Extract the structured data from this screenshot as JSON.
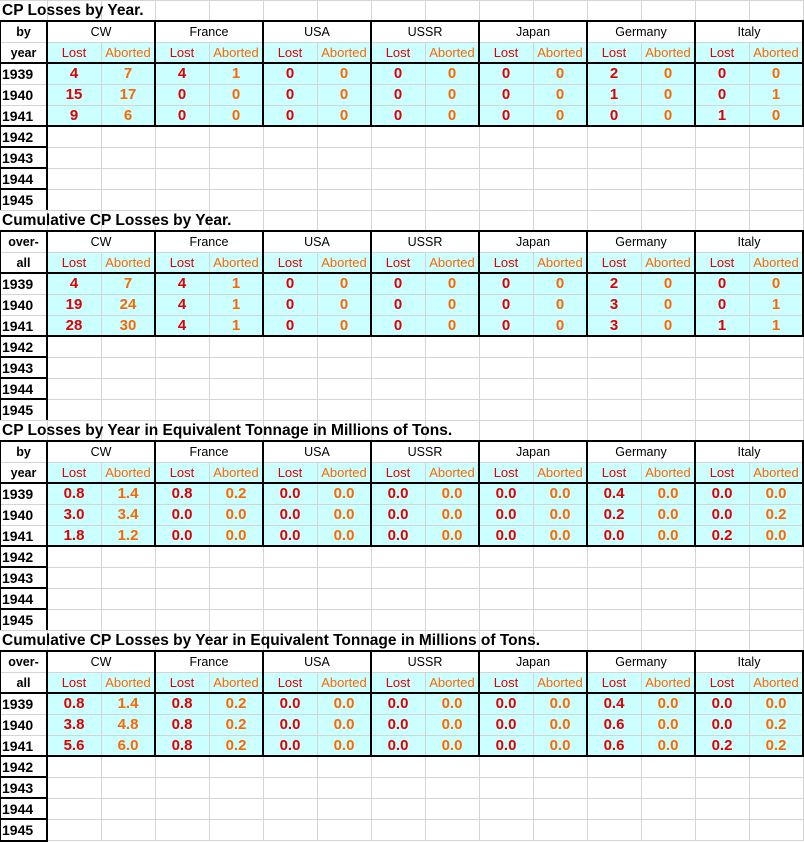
{
  "nations": [
    "CW",
    "France",
    "USA",
    "USSR",
    "Japan",
    "Germany",
    "Italy"
  ],
  "sub_headers": {
    "lost": "Lost",
    "aborted": "Aborted"
  },
  "colors": {
    "cell_fill": "#ccffff",
    "lost": "#e00000",
    "aborted": "#ff6600",
    "grid": "#d4d4d4",
    "border": "#000000"
  },
  "years": [
    "1939",
    "1940",
    "1941",
    "1942",
    "1943",
    "1944",
    "1945"
  ],
  "tables": [
    {
      "title": "CP Losses by Year.",
      "corner": [
        "by",
        "year"
      ],
      "rows": [
        [
          "4",
          "7",
          "4",
          "1",
          "0",
          "0",
          "0",
          "0",
          "0",
          "0",
          "2",
          "0",
          "0",
          "0"
        ],
        [
          "15",
          "17",
          "0",
          "0",
          "0",
          "0",
          "0",
          "0",
          "0",
          "0",
          "1",
          "0",
          "0",
          "1"
        ],
        [
          "9",
          "6",
          "0",
          "0",
          "0",
          "0",
          "0",
          "0",
          "0",
          "0",
          "0",
          "0",
          "1",
          "0"
        ]
      ]
    },
    {
      "title": "Cumulative CP Losses by Year.",
      "corner": [
        "over-",
        "all"
      ],
      "rows": [
        [
          "4",
          "7",
          "4",
          "1",
          "0",
          "0",
          "0",
          "0",
          "0",
          "0",
          "2",
          "0",
          "0",
          "0"
        ],
        [
          "19",
          "24",
          "4",
          "1",
          "0",
          "0",
          "0",
          "0",
          "0",
          "0",
          "3",
          "0",
          "0",
          "1"
        ],
        [
          "28",
          "30",
          "4",
          "1",
          "0",
          "0",
          "0",
          "0",
          "0",
          "0",
          "3",
          "0",
          "1",
          "1"
        ]
      ]
    },
    {
      "title": "CP Losses by Year in Equivalent Tonnage in Millions of Tons.",
      "corner": [
        "by",
        "year"
      ],
      "rows": [
        [
          "0.8",
          "1.4",
          "0.8",
          "0.2",
          "0.0",
          "0.0",
          "0.0",
          "0.0",
          "0.0",
          "0.0",
          "0.4",
          "0.0",
          "0.0",
          "0.0"
        ],
        [
          "3.0",
          "3.4",
          "0.0",
          "0.0",
          "0.0",
          "0.0",
          "0.0",
          "0.0",
          "0.0",
          "0.0",
          "0.2",
          "0.0",
          "0.0",
          "0.2"
        ],
        [
          "1.8",
          "1.2",
          "0.0",
          "0.0",
          "0.0",
          "0.0",
          "0.0",
          "0.0",
          "0.0",
          "0.0",
          "0.0",
          "0.0",
          "0.2",
          "0.0"
        ]
      ]
    },
    {
      "title": "Cumulative CP Losses by Year in Equivalent Tonnage in Millions of Tons.",
      "corner": [
        "over-",
        "all"
      ],
      "rows": [
        [
          "0.8",
          "1.4",
          "0.8",
          "0.2",
          "0.0",
          "0.0",
          "0.0",
          "0.0",
          "0.0",
          "0.0",
          "0.4",
          "0.0",
          "0.0",
          "0.0"
        ],
        [
          "3.8",
          "4.8",
          "0.8",
          "0.2",
          "0.0",
          "0.0",
          "0.0",
          "0.0",
          "0.0",
          "0.0",
          "0.6",
          "0.0",
          "0.0",
          "0.2"
        ],
        [
          "5.6",
          "6.0",
          "0.8",
          "0.2",
          "0.0",
          "0.0",
          "0.0",
          "0.0",
          "0.0",
          "0.0",
          "0.6",
          "0.0",
          "0.2",
          "0.2"
        ]
      ]
    }
  ]
}
